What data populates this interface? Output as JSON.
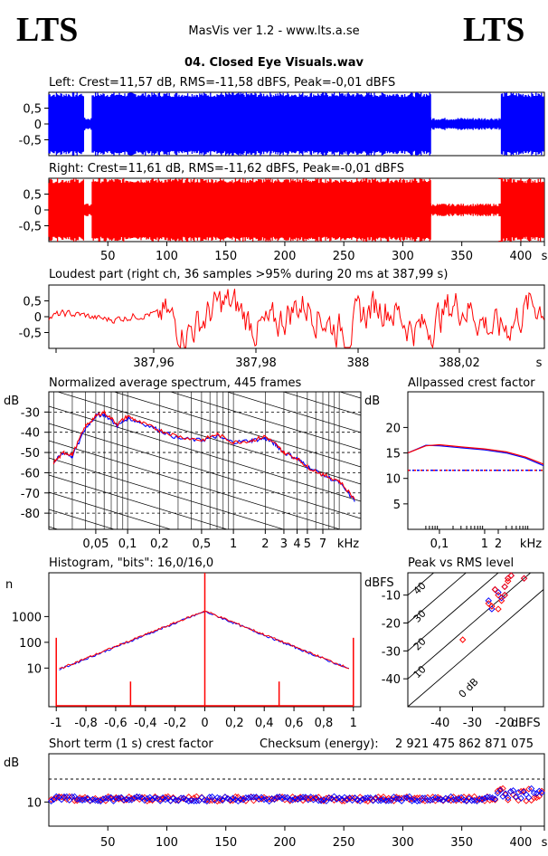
{
  "header": {
    "logo_left": "LTS",
    "logo_right": "LTS",
    "app_title": "MasVis ver 1.2 - www.lts.a.se",
    "file_title": "04. Closed Eye Visuals.wav"
  },
  "colors": {
    "left": "#0000ff",
    "right": "#ff0000",
    "axis": "#000000"
  },
  "chart_data": [
    {
      "id": "left",
      "type": "area",
      "title": "Left: Crest=11,57 dB, RMS=-11,58 dBFS, Peak=-0,01 dBFS",
      "ylim": [
        -1,
        1
      ],
      "y_ticks": [
        "0,5",
        "0",
        "-0,5"
      ],
      "xlim": [
        0,
        420
      ],
      "quiet_segments_s": [
        [
          30,
          36
        ],
        [
          324,
          383
        ]
      ],
      "color": "#0000ff"
    },
    {
      "id": "right",
      "type": "area",
      "title": "Right: Crest=11,61 dB, RMS=-11,62 dBFS, Peak=-0,01 dBFS",
      "ylim": [
        -1,
        1
      ],
      "y_ticks": [
        "0,5",
        "0",
        "-0,5"
      ],
      "xlim": [
        0,
        420
      ],
      "x_ticks": [
        "50",
        "100",
        "150",
        "200",
        "250",
        "300",
        "350",
        "400",
        "s"
      ],
      "quiet_segments_s": [
        [
          30,
          36
        ],
        [
          324,
          383
        ]
      ],
      "color": "#ff0000"
    },
    {
      "id": "loudest",
      "type": "line",
      "title": "Loudest part (right ch, 36 samples >95% during 20 ms at 387,99 s)",
      "y_ticks": [
        "0,5",
        "0",
        "-0,5"
      ],
      "x_ticks": [
        "387,96",
        "387,98",
        "388",
        "388,02",
        "s"
      ],
      "color": "#ff0000"
    },
    {
      "id": "spectrum",
      "type": "line",
      "title": "Normalized average spectrum, 445 frames",
      "ylabel": "dB",
      "y_ticks": [
        "-30",
        "-40",
        "-50",
        "-60",
        "-70",
        "-80"
      ],
      "x_ticks": [
        "0,05",
        "0,1",
        "0,2",
        "0,5",
        "1",
        "2",
        "3",
        "4",
        "5",
        "7",
        "kHz"
      ],
      "ylim": [
        -88,
        -20
      ],
      "series": [
        {
          "color": "#0000ff",
          "x": [
            0.02,
            0.025,
            0.03,
            0.04,
            0.05,
            0.06,
            0.08,
            0.1,
            0.13,
            0.2,
            0.3,
            0.5,
            0.7,
            1,
            1.5,
            2,
            2.5,
            3,
            4,
            5,
            7,
            10,
            14
          ],
          "y": [
            -55,
            -50,
            -52,
            -38,
            -32,
            -31,
            -37,
            -33,
            -35,
            -39,
            -43,
            -44,
            -42,
            -45,
            -44,
            -43,
            -46,
            -50,
            -53,
            -57,
            -61,
            -65,
            -74
          ]
        },
        {
          "color": "#ff0000",
          "x": [
            0.02,
            0.025,
            0.03,
            0.04,
            0.05,
            0.06,
            0.08,
            0.1,
            0.13,
            0.2,
            0.3,
            0.5,
            0.7,
            1,
            1.5,
            2,
            2.5,
            3,
            4,
            5,
            7,
            10,
            14
          ],
          "y": [
            -55,
            -50,
            -51,
            -37,
            -32,
            -30,
            -36,
            -32,
            -35,
            -39,
            -42,
            -44,
            -41,
            -45,
            -44,
            -42,
            -46,
            -50,
            -53,
            -57,
            -61,
            -64,
            -73
          ]
        }
      ]
    },
    {
      "id": "crest",
      "type": "line",
      "title": "Allpassed crest factor",
      "ylabel": "dB",
      "y_ticks": [
        "20",
        "15",
        "10",
        "5"
      ],
      "x_ticks": [
        "0,1",
        "1",
        "2",
        "kHz"
      ],
      "ylim": [
        0,
        27
      ],
      "series": [
        {
          "color": "#0000ff",
          "x": [
            0.02,
            0.05,
            0.1,
            0.3,
            1,
            3,
            8,
            20
          ],
          "y": [
            15,
            16.5,
            16.4,
            16,
            15.6,
            15,
            14,
            12.5
          ]
        },
        {
          "color": "#ff0000",
          "x": [
            0.02,
            0.05,
            0.1,
            0.3,
            1,
            3,
            8,
            20
          ],
          "y": [
            15,
            16.4,
            16.6,
            16.2,
            15.8,
            15.2,
            14.2,
            12.8
          ]
        }
      ],
      "reference_level": 11.6
    },
    {
      "id": "histogram",
      "type": "line",
      "title": "Histogram, \"bits\": 16,0/16,0",
      "ylabel": "n",
      "y_ticks": [
        "1000",
        "100",
        "10"
      ],
      "x_ticks": [
        "-1",
        "-0,8",
        "-0,6",
        "-0,4",
        "-0,2",
        "0",
        "0,2",
        "0,4",
        "0,6",
        "0,8",
        "1"
      ],
      "xlim": [
        -1.05,
        1.05
      ]
    },
    {
      "id": "peakrms",
      "type": "scatter",
      "title": "Peak vs RMS level",
      "ylabel": "dBFS",
      "xlabel": "dBFS",
      "y_ticks": [
        "-10",
        "-20",
        "-30",
        "-40"
      ],
      "x_ticks": [
        "-40",
        "-30",
        "-20"
      ],
      "diag_labels": [
        "40",
        "30",
        "20",
        "10",
        "0 dB"
      ],
      "xlim": [
        -50,
        -8
      ],
      "ylim": [
        -50,
        -2
      ],
      "series": [
        {
          "color": "#0000ff",
          "x": [
            -23,
            -22,
            -21,
            -20,
            -19,
            -24,
            -25,
            -18,
            -14,
            -20
          ],
          "y": [
            -8,
            -9,
            -11,
            -7,
            -4,
            -15,
            -12,
            -3,
            -4,
            -10
          ]
        },
        {
          "color": "#ff0000",
          "x": [
            -23,
            -22,
            -21,
            -20,
            -19,
            -24,
            -25,
            -18,
            -14,
            -20,
            -33,
            -22,
            -19
          ],
          "y": [
            -8,
            -10,
            -12,
            -7,
            -4,
            -14,
            -13,
            -3,
            -4,
            -10,
            -26,
            -15,
            -5
          ]
        }
      ]
    },
    {
      "id": "shortcrest",
      "type": "scatter",
      "title": "Short term (1 s) crest factor",
      "checksum_label": "Checksum (energy):",
      "checksum_value": "2 921 475 862 871 075",
      "ylabel": "dB",
      "y_ticks": [
        "10"
      ],
      "x_ticks": [
        "50",
        "100",
        "150",
        "200",
        "250",
        "300",
        "350",
        "400",
        "s"
      ],
      "xlim": [
        0,
        420
      ],
      "ylim": [
        0,
        30
      ],
      "reference_level": 19.5
    }
  ]
}
